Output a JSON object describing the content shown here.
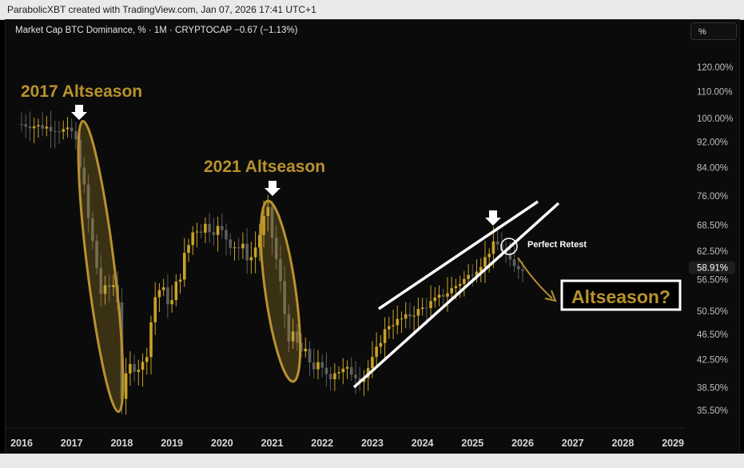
{
  "header": {
    "credit": "ParabolicXBT created with TradingView.com, Jan 07, 2026 17:41 UTC+1"
  },
  "legend": {
    "text": "Market Cap BTC Dominance, % · 1M · CRYPTOCAP  −0.67 (−1.13%)"
  },
  "scale_button": {
    "label": "%"
  },
  "colors": {
    "up": "#c9a227",
    "down": "#5e5e5e",
    "accent": "#b8922e",
    "annotation": "#ffffff"
  },
  "chart_data": {
    "type": "candlestick",
    "title": "Market Cap BTC Dominance, % · 1M · CRYPTOCAP",
    "ylabel": "%",
    "x_ticks": [
      "2016",
      "2017",
      "2018",
      "2019",
      "2020",
      "2021",
      "2022",
      "2023",
      "2024",
      "2025",
      "2026",
      "2027",
      "2028",
      "2029"
    ],
    "y_ticks": [
      "120.00%",
      "110.00%",
      "100.00%",
      "92.00%",
      "84.00%",
      "76.00%",
      "68.50%",
      "62.50%",
      "56.50%",
      "50.50%",
      "46.50%",
      "42.50%",
      "38.50%",
      "35.50%"
    ],
    "last_value": "58.91%",
    "y_scale": "log",
    "xlim": [
      2016.0,
      2029.0
    ],
    "ylim": [
      34.5,
      125
    ],
    "series": [
      {
        "monthly_close": [
          {
            "x": 2016.0,
            "y": 98.0
          },
          {
            "x": 2016.5,
            "y": 97.0
          },
          {
            "x": 2016.8,
            "y": 96.0
          },
          {
            "x": 2017.0,
            "y": 95.5
          },
          {
            "x": 2017.15,
            "y": 88.0
          },
          {
            "x": 2017.3,
            "y": 72.0
          },
          {
            "x": 2017.45,
            "y": 62.0
          },
          {
            "x": 2017.6,
            "y": 53.0
          },
          {
            "x": 2017.75,
            "y": 55.0
          },
          {
            "x": 2017.9,
            "y": 56.0
          },
          {
            "x": 2018.0,
            "y": 37.5
          },
          {
            "x": 2018.2,
            "y": 42.0
          },
          {
            "x": 2018.45,
            "y": 41.5
          },
          {
            "x": 2018.7,
            "y": 55.0
          },
          {
            "x": 2019.0,
            "y": 52.0
          },
          {
            "x": 2019.45,
            "y": 68.0
          },
          {
            "x": 2019.8,
            "y": 68.5
          },
          {
            "x": 2020.2,
            "y": 64.5
          },
          {
            "x": 2020.6,
            "y": 61.0
          },
          {
            "x": 2020.9,
            "y": 72.0
          },
          {
            "x": 2021.3,
            "y": 47.0
          },
          {
            "x": 2021.6,
            "y": 43.5
          },
          {
            "x": 2022.0,
            "y": 40.5
          },
          {
            "x": 2022.5,
            "y": 41.0
          },
          {
            "x": 2022.8,
            "y": 39.5
          },
          {
            "x": 2023.0,
            "y": 42.5
          },
          {
            "x": 2023.3,
            "y": 48.0
          },
          {
            "x": 2023.7,
            "y": 49.5
          },
          {
            "x": 2024.0,
            "y": 51.0
          },
          {
            "x": 2024.5,
            "y": 54.0
          },
          {
            "x": 2024.9,
            "y": 57.0
          },
          {
            "x": 2025.2,
            "y": 60.0
          },
          {
            "x": 2025.45,
            "y": 64.5
          },
          {
            "x": 2025.65,
            "y": 62.0
          },
          {
            "x": 2025.8,
            "y": 59.0
          },
          {
            "x": 2026.0,
            "y": 58.91
          }
        ]
      }
    ],
    "annotations": [
      {
        "text": "2017 Altseason",
        "x": 2017.0,
        "y": 104
      },
      {
        "text": "2021 Altseason",
        "x": 2021.0,
        "y": 80
      },
      {
        "text": "Perfect Retest",
        "x": 2025.8,
        "y": 64
      },
      {
        "text": "Altseason?",
        "x": 2026.7,
        "y": 53.5
      }
    ]
  }
}
